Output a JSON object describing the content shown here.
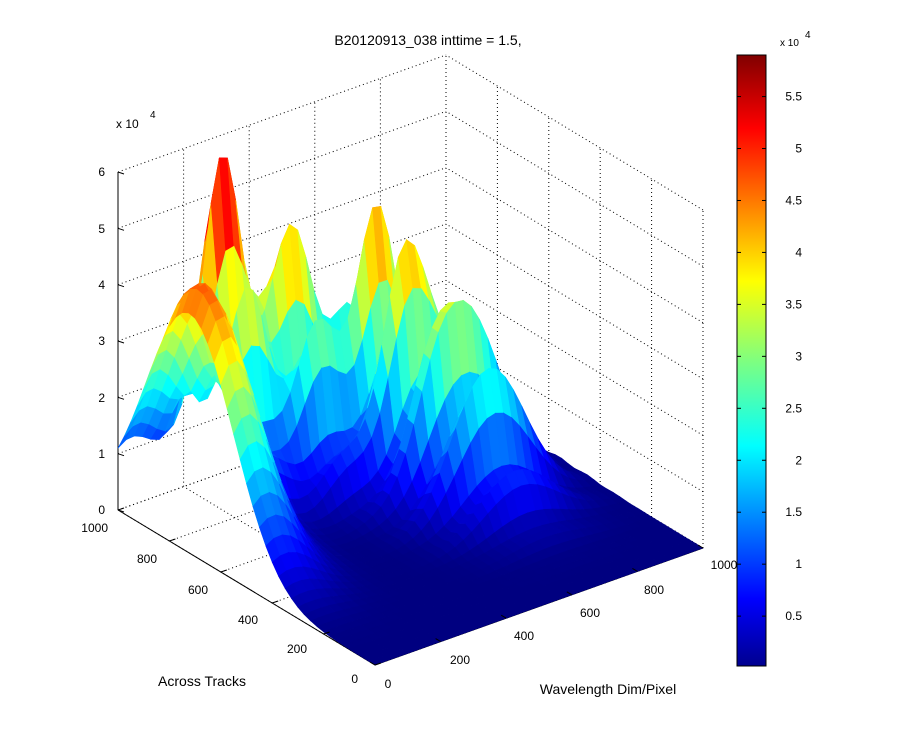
{
  "chart_data": {
    "type": "surface",
    "title": "B20120913_038 inttime = 1.5,",
    "xlabel": "Wavelength Dim/Pixel",
    "ylabel": "Across Tracks",
    "x_ticks": [
      "0",
      "200",
      "400",
      "600",
      "800",
      "1000"
    ],
    "y_ticks": [
      "0",
      "200",
      "400",
      "600",
      "800",
      "1000"
    ],
    "z_ticks": [
      "0",
      "1",
      "2",
      "3",
      "4",
      "5",
      "6"
    ],
    "z_multiplier": "x 10",
    "z_multiplier_exp": "4",
    "xlim": [
      0,
      1000
    ],
    "ylim": [
      0,
      1000
    ],
    "zlim": [
      0,
      60000
    ],
    "grid": true,
    "colormap": "jet",
    "colorbar": {
      "ticks": [
        "0.5",
        "1",
        "1.5",
        "2",
        "2.5",
        "3",
        "3.5",
        "4",
        "4.5",
        "5",
        "5.5"
      ],
      "multiplier": "x 10",
      "multiplier_exp": "4",
      "range": [
        200,
        59000
      ]
    },
    "peaks": [
      {
        "x": 40,
        "y": 720,
        "z": 47000
      },
      {
        "x": 260,
        "y": 930,
        "z": 58500
      },
      {
        "x": 430,
        "y": 880,
        "z": 45000
      },
      {
        "x": 610,
        "y": 780,
        "z": 40000
      },
      {
        "x": 700,
        "y": 560,
        "z": 35000
      }
    ]
  }
}
